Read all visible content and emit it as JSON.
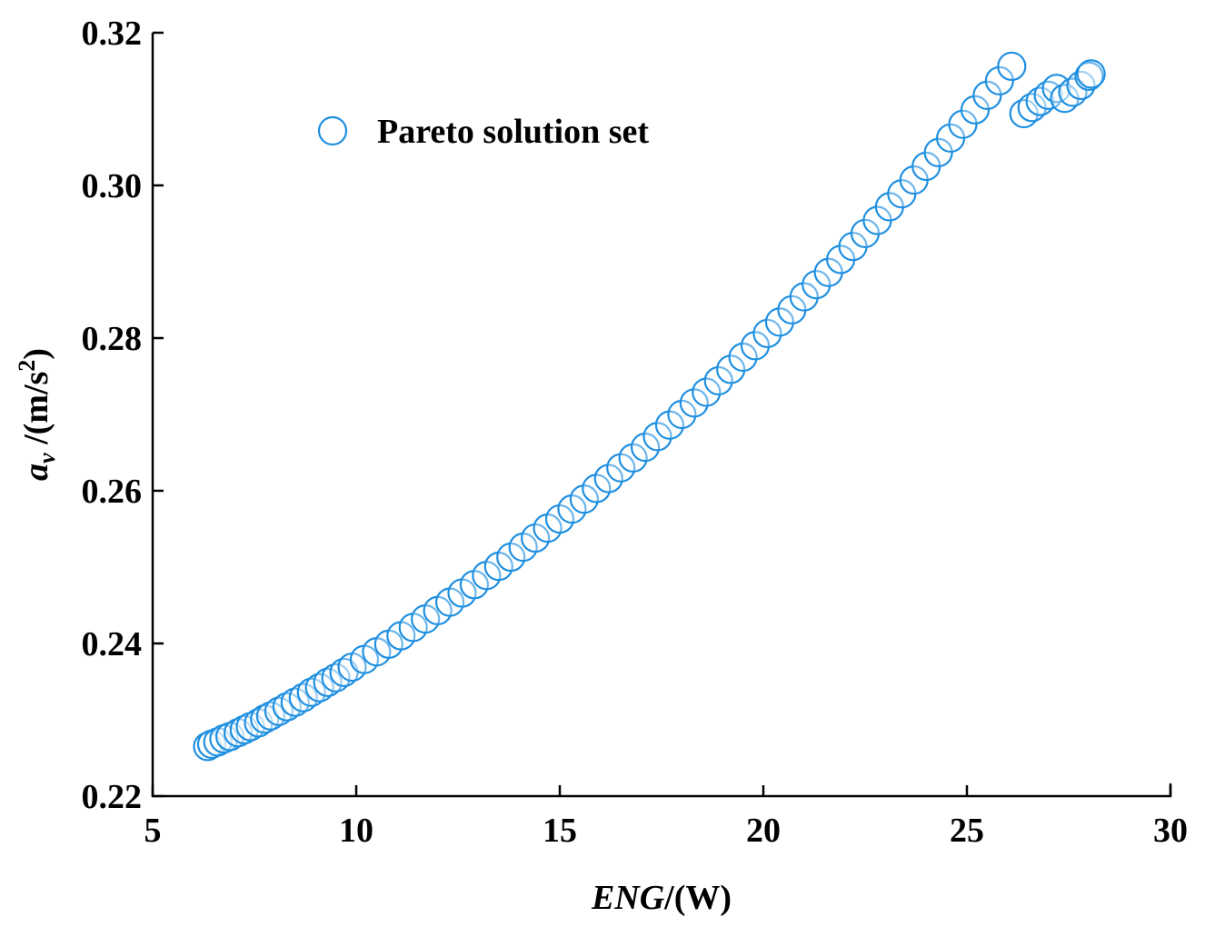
{
  "chart_data": {
    "type": "scatter",
    "title": "",
    "xlabel": "ENG/(W)",
    "xlabel_italic": "ENG",
    "xlabel_rest": "/(W)",
    "ylabel_symbol": "a",
    "ylabel_subscript": "v",
    "ylabel_rest": " /(m/s",
    "ylabel_sup": "2",
    "ylabel_close": ")",
    "xlim": [
      5,
      30
    ],
    "ylim": [
      0.22,
      0.32
    ],
    "x_ticks": [
      5,
      10,
      15,
      20,
      25,
      30
    ],
    "x_tick_labels": [
      "5",
      "10",
      "15",
      "20",
      "25",
      "30"
    ],
    "y_ticks": [
      0.22,
      0.24,
      0.26,
      0.28,
      0.3,
      0.32
    ],
    "y_tick_labels": [
      "0.22",
      "0.24",
      "0.26",
      "0.28",
      "0.30",
      "0.32"
    ],
    "legend": {
      "position": "top-left",
      "entries": [
        "Pareto solution set"
      ]
    },
    "marker_color": "#1f8fe0",
    "series": [
      {
        "name": "Pareto solution set",
        "marker": "open-circle",
        "points": [
          [
            6.35,
            0.2265
          ],
          [
            6.45,
            0.2268
          ],
          [
            6.6,
            0.2271
          ],
          [
            6.75,
            0.2275
          ],
          [
            6.9,
            0.2278
          ],
          [
            7.1,
            0.2283
          ],
          [
            7.25,
            0.2287
          ],
          [
            7.4,
            0.2291
          ],
          [
            7.6,
            0.2296
          ],
          [
            7.75,
            0.2301
          ],
          [
            7.9,
            0.2305
          ],
          [
            8.1,
            0.2311
          ],
          [
            8.3,
            0.2317
          ],
          [
            8.5,
            0.2323
          ],
          [
            8.7,
            0.2329
          ],
          [
            8.9,
            0.2336
          ],
          [
            9.1,
            0.2342
          ],
          [
            9.3,
            0.2349
          ],
          [
            9.5,
            0.2355
          ],
          [
            9.7,
            0.2362
          ],
          [
            9.9,
            0.2369
          ],
          [
            10.2,
            0.2379
          ],
          [
            10.5,
            0.2389
          ],
          [
            10.8,
            0.2399
          ],
          [
            11.1,
            0.241
          ],
          [
            11.4,
            0.2421
          ],
          [
            11.7,
            0.2432
          ],
          [
            12.0,
            0.2443
          ],
          [
            12.3,
            0.2454
          ],
          [
            12.6,
            0.2466
          ],
          [
            12.9,
            0.2477
          ],
          [
            13.2,
            0.2489
          ],
          [
            13.5,
            0.2501
          ],
          [
            13.8,
            0.2513
          ],
          [
            14.1,
            0.2526
          ],
          [
            14.4,
            0.2538
          ],
          [
            14.7,
            0.2551
          ],
          [
            15.0,
            0.2563
          ],
          [
            15.3,
            0.2576
          ],
          [
            15.6,
            0.2589
          ],
          [
            15.9,
            0.2603
          ],
          [
            16.2,
            0.2616
          ],
          [
            16.5,
            0.263
          ],
          [
            16.8,
            0.2643
          ],
          [
            17.1,
            0.2657
          ],
          [
            17.4,
            0.2671
          ],
          [
            17.7,
            0.2686
          ],
          [
            18.0,
            0.27
          ],
          [
            18.3,
            0.2715
          ],
          [
            18.6,
            0.2729
          ],
          [
            18.9,
            0.2744
          ],
          [
            19.2,
            0.2759
          ],
          [
            19.5,
            0.2775
          ],
          [
            19.8,
            0.279
          ],
          [
            20.1,
            0.2806
          ],
          [
            20.4,
            0.2821
          ],
          [
            20.7,
            0.2837
          ],
          [
            21.0,
            0.2854
          ],
          [
            21.3,
            0.287
          ],
          [
            21.6,
            0.2886
          ],
          [
            21.9,
            0.2903
          ],
          [
            22.2,
            0.292
          ],
          [
            22.5,
            0.2937
          ],
          [
            22.8,
            0.2954
          ],
          [
            23.1,
            0.2972
          ],
          [
            23.4,
            0.2989
          ],
          [
            23.7,
            0.3007
          ],
          [
            24.0,
            0.3025
          ],
          [
            24.3,
            0.3043
          ],
          [
            24.6,
            0.3062
          ],
          [
            24.9,
            0.308
          ],
          [
            25.2,
            0.3099
          ],
          [
            25.5,
            0.3118
          ],
          [
            25.8,
            0.3137
          ],
          [
            26.1,
            0.3156
          ],
          [
            26.4,
            0.3094
          ],
          [
            26.6,
            0.3102
          ],
          [
            26.8,
            0.311
          ],
          [
            27.0,
            0.3118
          ],
          [
            27.2,
            0.3127
          ],
          [
            27.4,
            0.3114
          ],
          [
            27.6,
            0.3122
          ],
          [
            27.8,
            0.3131
          ],
          [
            28.0,
            0.3143
          ],
          [
            28.05,
            0.3146
          ]
        ]
      }
    ]
  }
}
